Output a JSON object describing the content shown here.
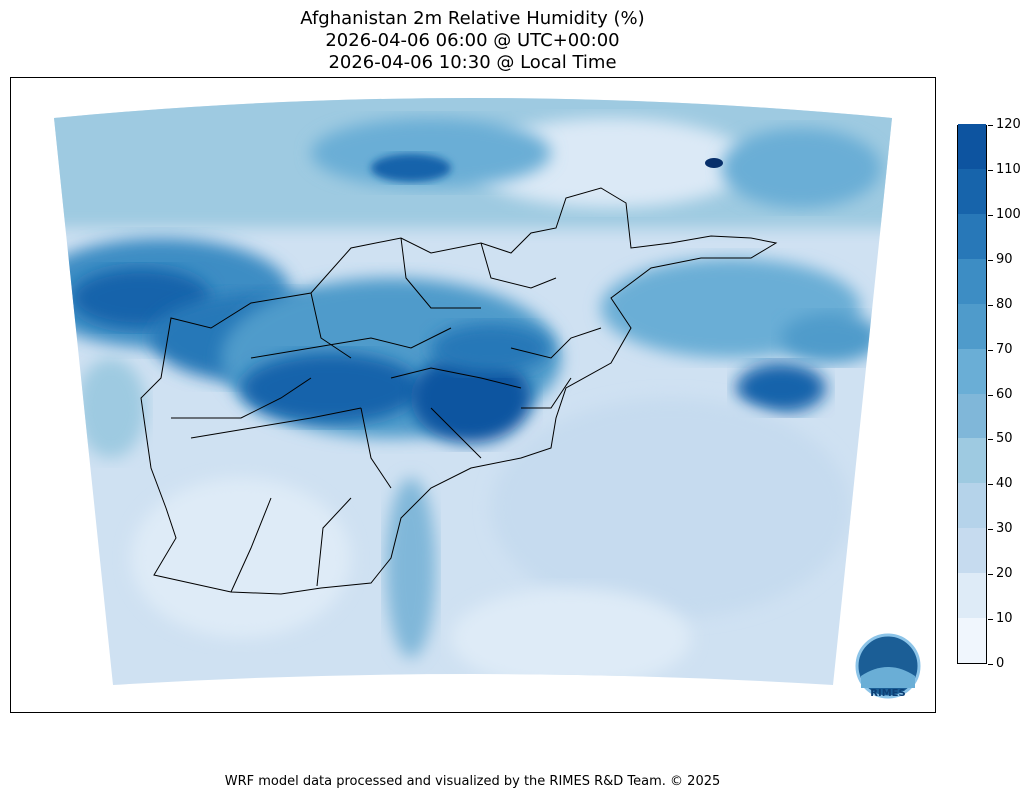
{
  "map": {
    "title_lines": [
      "Afghanistan 2m Relative Humidity (%)",
      "2026-04-06 06:00 @ UTC+00:00",
      "2026-04-06 10:30 @ Local Time"
    ],
    "footer": "WRF model data processed and visualized by the RIMES R&D Team. © 2025",
    "colorbar": {
      "min": 0,
      "max": 120,
      "ticks": [
        "0",
        "10",
        "20",
        "30",
        "40",
        "50",
        "60",
        "70",
        "80",
        "90",
        "100",
        "110",
        "120"
      ],
      "colors": [
        "#f0f6fd",
        "#deebf7",
        "#c6dbef",
        "#b5d3ea",
        "#9ecae1",
        "#80b7d9",
        "#6aaed6",
        "#4f9bcb",
        "#3d8dc4",
        "#2878b8",
        "#1764ab",
        "#0d54a0",
        "#08306b"
      ]
    },
    "logo": {
      "text": "RIMES",
      "ring_text": "Regional Integrated Multi-Hazard Early Warning System"
    }
  }
}
